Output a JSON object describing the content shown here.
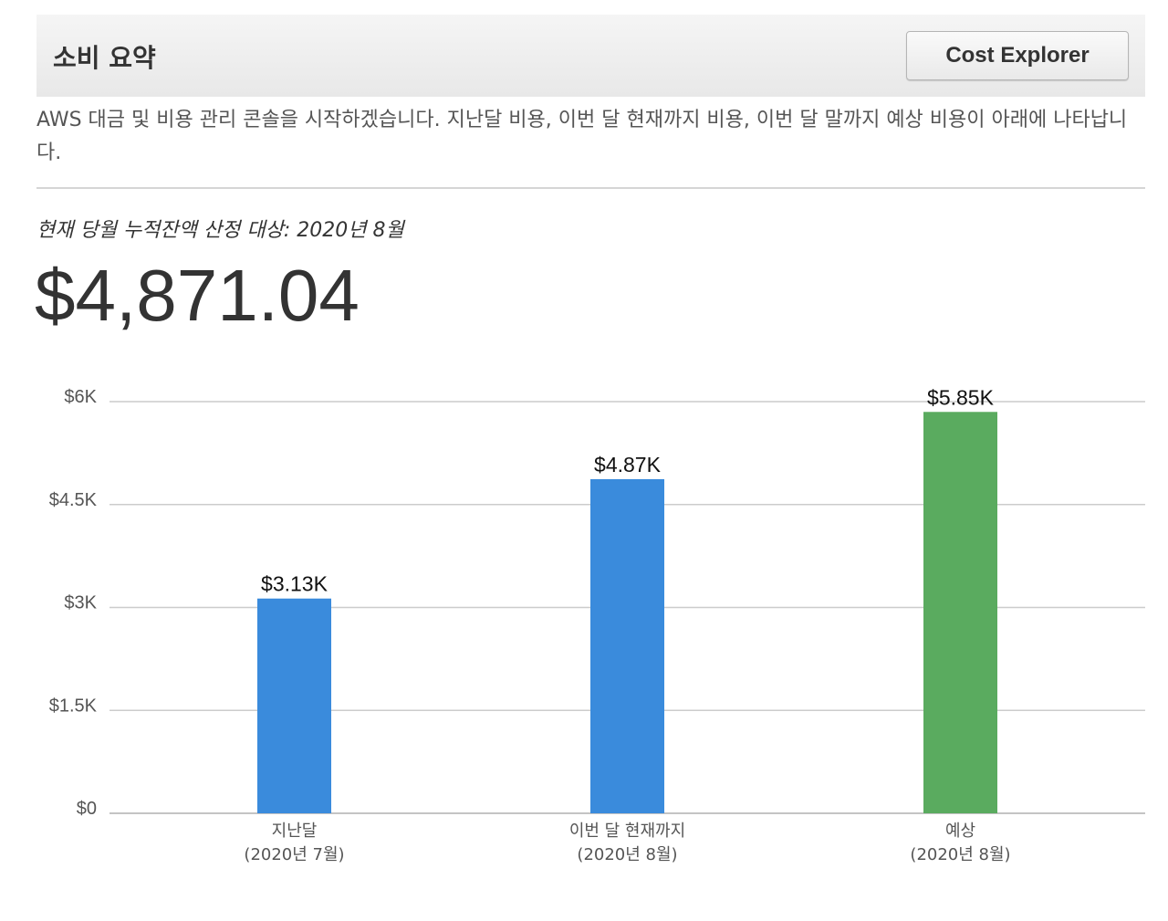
{
  "panel": {
    "title": "소비 요약",
    "cost_explorer_button": "Cost Explorer",
    "description": "AWS 대금 및 비용 관리 콘솔을 시작하겠습니다. 지난달 비용, 이번 달 현재까지 비용, 이번 달 말까지 예상 비용이 아래에 나타납니다.",
    "period_label": "현재 당월 누적잔액 산정 대상: 2020년 8월",
    "total_amount": "$4,871.04"
  },
  "colors": {
    "actual": "#3a8bdc",
    "forecast": "#5aab5f",
    "grid": "#cccccc"
  },
  "chart_data": {
    "type": "bar",
    "categories": [
      [
        "지난달",
        "(2020년 7월)"
      ],
      [
        "이번 달 현재까지",
        "(2020년 8월)"
      ],
      [
        "예상",
        "(2020년 8월)"
      ]
    ],
    "values": [
      3130,
      4870,
      5850
    ],
    "value_labels": [
      "$3.13K",
      "$4.87K",
      "$5.85K"
    ],
    "bar_kinds": [
      "actual",
      "actual",
      "forecast"
    ],
    "ylim": [
      0,
      6000
    ],
    "yticks": [
      0,
      1500,
      3000,
      4500,
      6000
    ],
    "ytick_labels": [
      "$0",
      "$1.5K",
      "$3K",
      "$4.5K",
      "$6K"
    ],
    "grid": true,
    "xlabel": "",
    "ylabel": ""
  }
}
